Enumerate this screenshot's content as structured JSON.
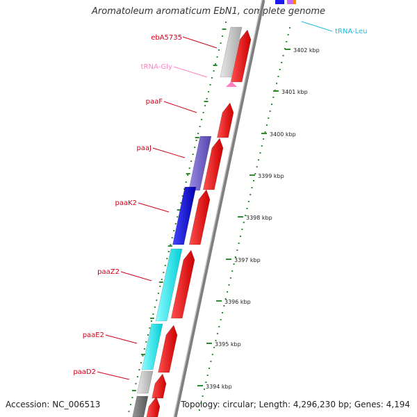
{
  "title": "Aromatoleum aromaticum EbN1, complete genome",
  "footer": {
    "accession": "Accession: NC_006513",
    "topology": "Topology: circular; Length: 4,296,230 bp; Genes: 4,194"
  },
  "colors": {
    "backbone": "#9a9a9a",
    "tick": "#2e8b2e",
    "label": "#d0001a",
    "trna_gly": "#ff80c0",
    "trna_leu": "#22bbdd",
    "cds_forward": "#ff0000",
    "gene_grey": "#bcbcbc",
    "gene_purple": "#7766cc",
    "gene_blue": "#1a1aee",
    "gene_cyan": "#22eeee",
    "gene_darkgrey": "#777777"
  },
  "ruler": {
    "ticks": [
      {
        "label": "3402 kbp"
      },
      {
        "label": "3401 kbp"
      },
      {
        "label": "3400 kbp"
      },
      {
        "label": "3399 kbp"
      },
      {
        "label": "3398 kbp"
      },
      {
        "label": "3397 kbp"
      },
      {
        "label": "3396 kbp"
      },
      {
        "label": "3395 kbp"
      },
      {
        "label": "3394 kbp"
      }
    ]
  },
  "gene_labels": [
    {
      "name": "ebA5735",
      "color": "#d0001a"
    },
    {
      "name": "tRNA-Gly",
      "color": "#ff80c0"
    },
    {
      "name": "paaF",
      "color": "#d0001a"
    },
    {
      "name": "paaJ",
      "color": "#d0001a"
    },
    {
      "name": "paaK2",
      "color": "#d0001a"
    },
    {
      "name": "paaZ2",
      "color": "#d0001a"
    },
    {
      "name": "paaE2",
      "color": "#d0001a"
    },
    {
      "name": "paaD2",
      "color": "#d0001a"
    },
    {
      "name": "tRNA-Leu",
      "color": "#22bbdd"
    }
  ]
}
